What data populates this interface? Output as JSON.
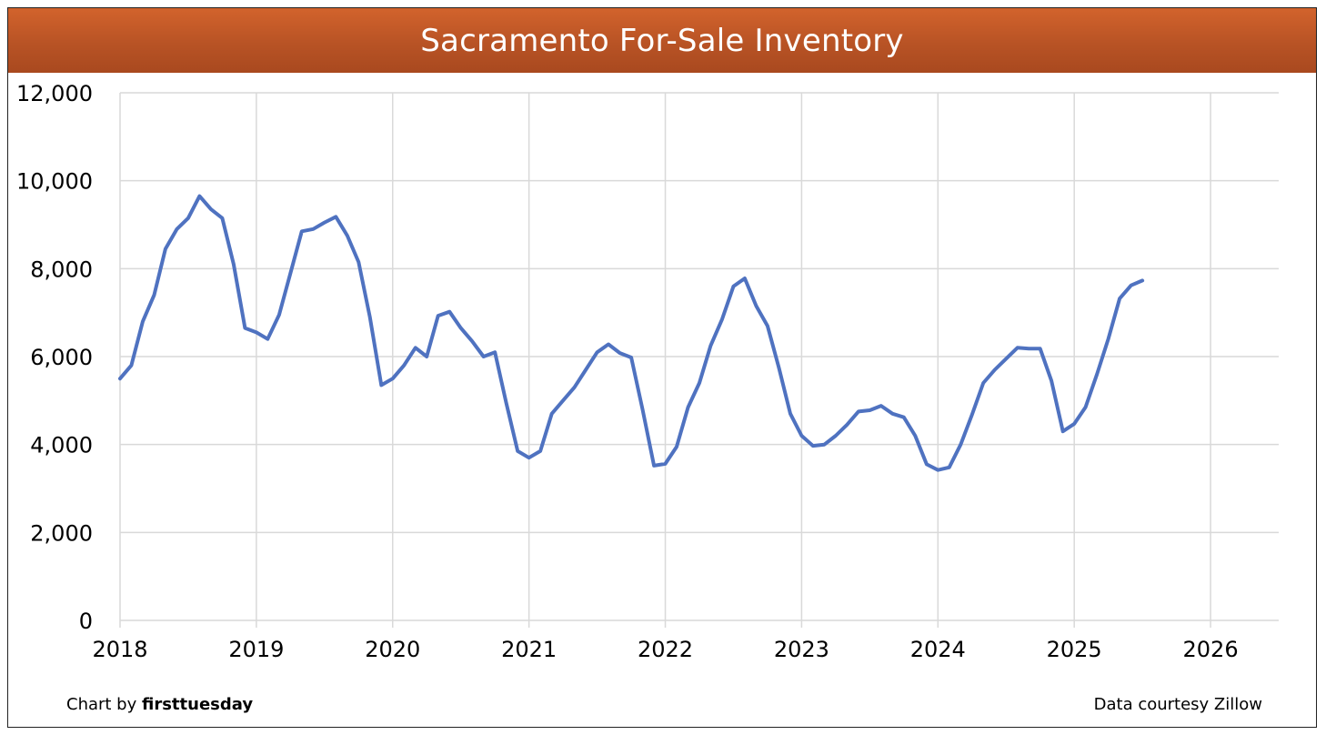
{
  "chart_data": {
    "type": "line",
    "title": "Sacramento For-Sale Inventory",
    "xlabel": "",
    "ylabel": "",
    "ylim": [
      0,
      12000
    ],
    "xlim": [
      2018,
      2026.5
    ],
    "y_ticks": [
      "0",
      "2,000",
      "4,000",
      "6,000",
      "8,000",
      "10,000",
      "12,000"
    ],
    "x_ticks": [
      "2018",
      "2019",
      "2020",
      "2021",
      "2022",
      "2023",
      "2024",
      "2025",
      "2026"
    ],
    "grid": true,
    "line_color": "#4f72c0",
    "series": [
      {
        "x": [
          2018.0,
          2018.083,
          2018.167,
          2018.25,
          2018.333,
          2018.417,
          2018.5,
          2018.583,
          2018.667,
          2018.75,
          2018.833,
          2018.917,
          2019.0,
          2019.083,
          2019.167,
          2019.25,
          2019.333,
          2019.417,
          2019.5,
          2019.583,
          2019.667,
          2019.75,
          2019.833,
          2019.917,
          2020.0,
          2020.083,
          2020.167,
          2020.25,
          2020.333,
          2020.417,
          2020.5,
          2020.583,
          2020.667,
          2020.75,
          2020.833,
          2020.917,
          2021.0,
          2021.083,
          2021.167,
          2021.25,
          2021.333,
          2021.417,
          2021.5,
          2021.583,
          2021.667,
          2021.75,
          2021.833,
          2021.917,
          2022.0,
          2022.083,
          2022.167,
          2022.25,
          2022.333,
          2022.417,
          2022.5,
          2022.583,
          2022.667,
          2022.75,
          2022.833,
          2022.917,
          2023.0,
          2023.083,
          2023.167,
          2023.25,
          2023.333,
          2023.417,
          2023.5,
          2023.583,
          2023.667,
          2023.75,
          2023.833,
          2023.917,
          2024.0,
          2024.083,
          2024.167,
          2024.25,
          2024.333,
          2024.417,
          2024.5,
          2024.583,
          2024.667,
          2024.75,
          2024.833,
          2024.917,
          2025.0,
          2025.083,
          2025.167,
          2025.25,
          2025.333,
          2025.417,
          2025.5
        ],
        "values": [
          5500,
          5800,
          6800,
          7400,
          8450,
          8900,
          9150,
          9650,
          9350,
          9150,
          8100,
          6650,
          6550,
          6400,
          6950,
          7900,
          8850,
          8900,
          9050,
          9180,
          8750,
          8150,
          6900,
          5350,
          5500,
          5800,
          6200,
          6000,
          6930,
          7020,
          6650,
          6350,
          6000,
          6100,
          4950,
          3850,
          3700,
          3850,
          4700,
          5000,
          5300,
          5700,
          6100,
          6280,
          6080,
          5980,
          4800,
          3520,
          3560,
          3950,
          4850,
          5400,
          6250,
          6850,
          7600,
          7780,
          7150,
          6700,
          5750,
          4700,
          4200,
          3970,
          4000,
          4200,
          4450,
          4750,
          4780,
          4880,
          4700,
          4620,
          4200,
          3550,
          3420,
          3480,
          4000,
          4680,
          5400,
          5700,
          5950,
          6200,
          6180,
          6180,
          5450,
          4300,
          4470,
          4850,
          5600,
          6400,
          7320,
          7620,
          7730
        ]
      }
    ]
  },
  "credits": {
    "left_prefix": "Chart by ",
    "left_brand": "firsttuesday",
    "right": "Data courtesy Zillow"
  }
}
